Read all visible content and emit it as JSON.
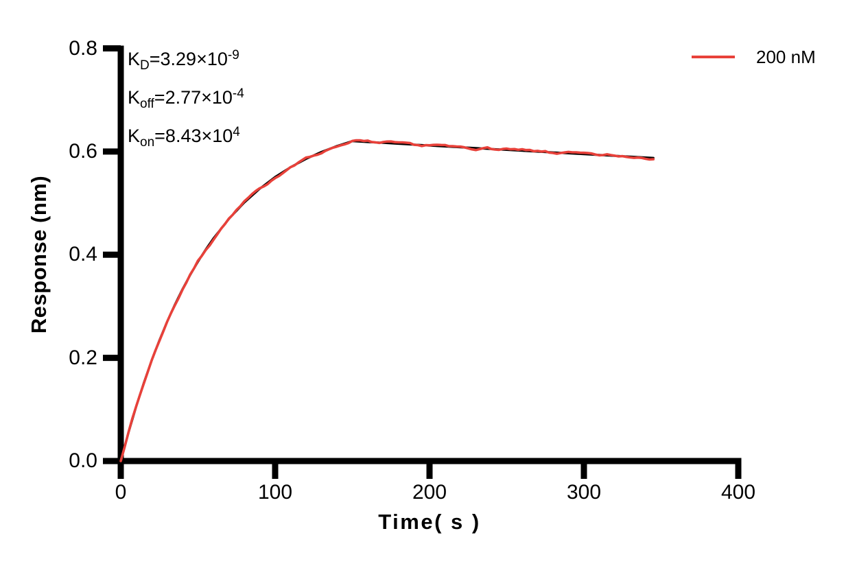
{
  "legend": {
    "label": "200 nM",
    "color": "#E8413A"
  },
  "annotations": [
    {
      "base": "K",
      "sub": "D",
      "eq": "=3.29×10",
      "exp": "-9"
    },
    {
      "base": "K",
      "sub": "off",
      "eq": "=2.77×10",
      "exp": "-4"
    },
    {
      "base": "K",
      "sub": "on",
      "eq": "=8.43×10",
      "exp": "4"
    }
  ],
  "chart_data": {
    "type": "line",
    "title": "",
    "xlabel": "Time( s )",
    "ylabel": "Response (nm)",
    "xlim": [
      0,
      400
    ],
    "ylim": [
      0,
      0.8
    ],
    "xticks": [
      "0",
      "100",
      "200",
      "300",
      "400"
    ],
    "yticks": [
      "0.0",
      "0.2",
      "0.4",
      "0.6",
      "0.8"
    ],
    "grid": false,
    "legend_position": "top-right",
    "legend_entries": [
      {
        "label": "200 nM",
        "color": "#E8413A"
      }
    ],
    "kinetics": {
      "KD": "3.29×10^-9",
      "Koff": "2.77×10^-4",
      "Kon": "8.43×10^4",
      "concentration": "200 nM",
      "association_end_s": 150,
      "curve_end_s": 345,
      "peak_response_nm": 0.62
    },
    "series": [
      {
        "name": "fit",
        "color": "#000000",
        "points": [
          [
            0,
            0
          ],
          [
            5,
            0.0552
          ],
          [
            10,
            0.1058
          ],
          [
            15,
            0.1523
          ],
          [
            20,
            0.1949
          ],
          [
            25,
            0.234
          ],
          [
            30,
            0.2699
          ],
          [
            35,
            0.303
          ],
          [
            40,
            0.3332
          ],
          [
            45,
            0.361
          ],
          [
            50,
            0.3865
          ],
          [
            55,
            0.4099
          ],
          [
            60,
            0.4314
          ],
          [
            70,
            0.4692
          ],
          [
            80,
            0.5011
          ],
          [
            90,
            0.5279
          ],
          [
            100,
            0.5506
          ],
          [
            110,
            0.5696
          ],
          [
            120,
            0.5857
          ],
          [
            130,
            0.5992
          ],
          [
            140,
            0.6106
          ],
          [
            150,
            0.6202
          ],
          [
            160,
            0.6185
          ],
          [
            170,
            0.6168
          ],
          [
            180,
            0.6151
          ],
          [
            190,
            0.6134
          ],
          [
            200,
            0.6117
          ],
          [
            210,
            0.61
          ],
          [
            220,
            0.6083
          ],
          [
            230,
            0.6066
          ],
          [
            240,
            0.6049
          ],
          [
            250,
            0.6033
          ],
          [
            260,
            0.6016
          ],
          [
            270,
            0.5999
          ],
          [
            280,
            0.5983
          ],
          [
            290,
            0.5966
          ],
          [
            300,
            0.595
          ],
          [
            310,
            0.5933
          ],
          [
            320,
            0.5917
          ],
          [
            330,
            0.5901
          ],
          [
            340,
            0.5884
          ],
          [
            345,
            0.5876
          ]
        ]
      },
      {
        "name": "200 nM data",
        "color": "#E8413A",
        "derived_from": "fit",
        "noise_amplitude": 0.0045
      }
    ]
  }
}
